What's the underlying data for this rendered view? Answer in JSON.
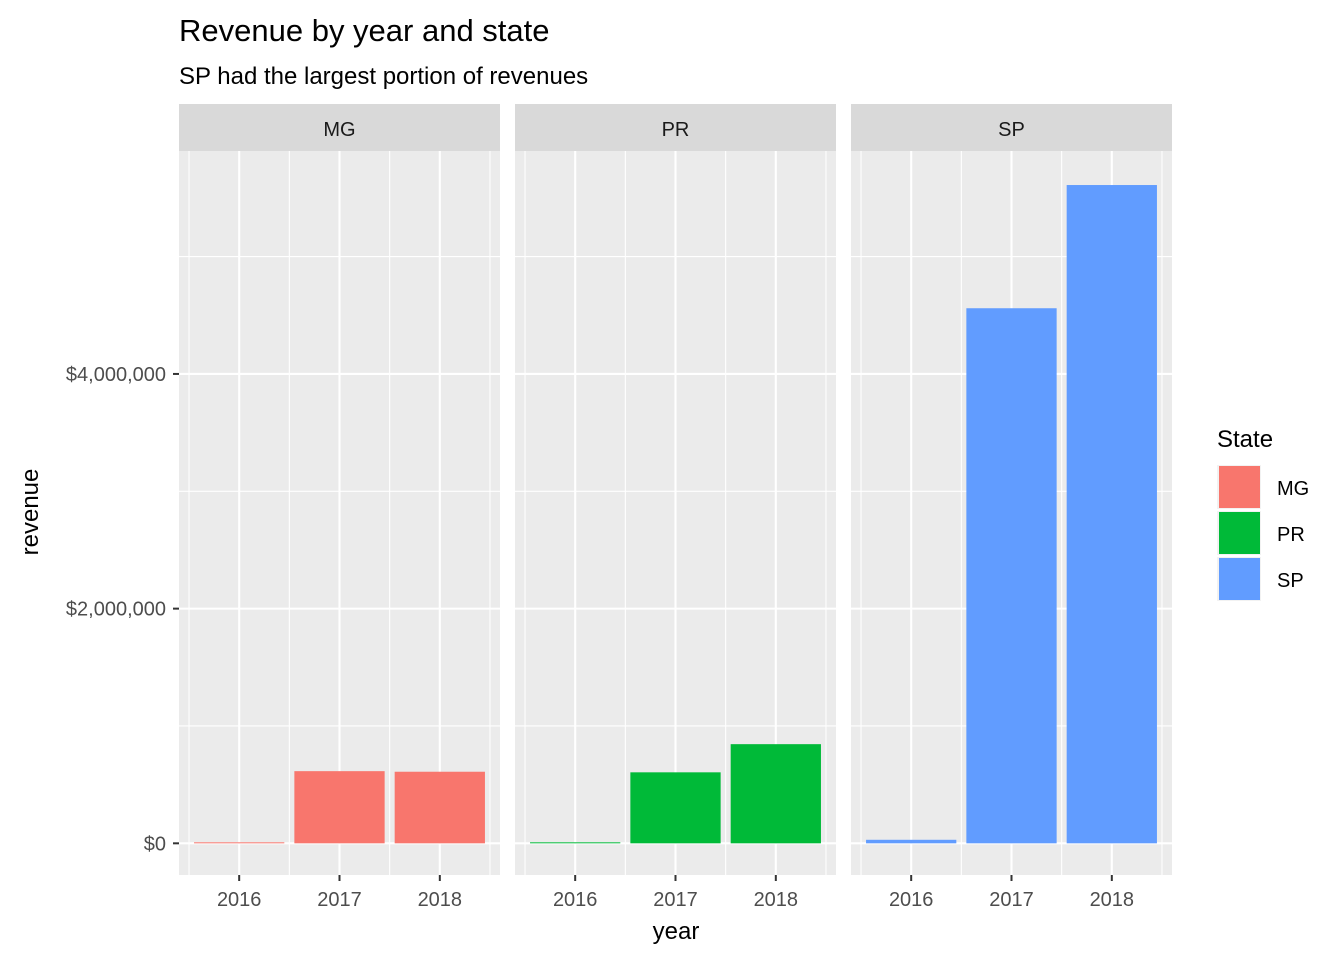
{
  "chart_data": {
    "type": "bar",
    "title": "Revenue by year and state",
    "subtitle": "SP had the largest portion of revenues",
    "xlabel": "year",
    "ylabel": "revenue",
    "categories": [
      "2016",
      "2017",
      "2018"
    ],
    "y_ticks": [
      0,
      2000000,
      4000000
    ],
    "y_tick_labels": [
      "$0",
      "$2,000,000",
      "$4,000,000"
    ],
    "ylim": [
      -270000,
      5900000
    ],
    "grid": true,
    "legend": {
      "title": "State",
      "position": "right",
      "entries": [
        {
          "label": "MG",
          "color": "#F8766D"
        },
        {
          "label": "PR",
          "color": "#00BA38"
        },
        {
          "label": "SP",
          "color": "#619CFF"
        }
      ]
    },
    "facets": [
      {
        "name": "MG",
        "color": "#F8766D",
        "values": [
          3000,
          615000,
          610000
        ]
      },
      {
        "name": "PR",
        "color": "#00BA38",
        "values": [
          2000,
          605000,
          845000
        ]
      },
      {
        "name": "SP",
        "color": "#619CFF",
        "values": [
          30000,
          4560000,
          5610000
        ]
      }
    ]
  }
}
